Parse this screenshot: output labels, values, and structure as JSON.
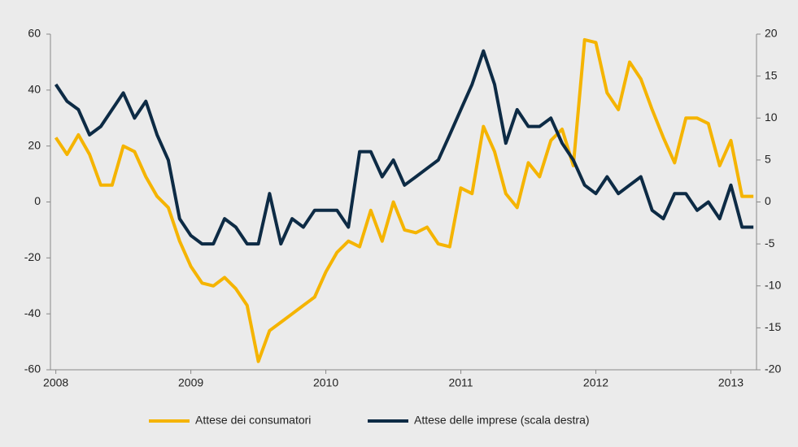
{
  "chart_data": {
    "type": "line",
    "x": [
      2008,
      2008.083,
      2008.167,
      2008.25,
      2008.333,
      2008.417,
      2008.5,
      2008.583,
      2008.667,
      2008.75,
      2008.833,
      2008.917,
      2009,
      2009.083,
      2009.167,
      2009.25,
      2009.333,
      2009.417,
      2009.5,
      2009.583,
      2009.667,
      2009.75,
      2009.833,
      2009.917,
      2010,
      2010.083,
      2010.167,
      2010.25,
      2010.333,
      2010.417,
      2010.5,
      2010.583,
      2010.667,
      2010.75,
      2010.833,
      2010.917,
      2011,
      2011.083,
      2011.167,
      2011.25,
      2011.333,
      2011.417,
      2011.5,
      2011.583,
      2011.667,
      2011.75,
      2011.833,
      2011.917,
      2012,
      2012.083,
      2012.167,
      2012.25,
      2012.333,
      2012.417,
      2012.5,
      2012.583,
      2012.667,
      2012.75,
      2012.833,
      2012.917,
      2013,
      2013.083,
      2013.167
    ],
    "series": [
      {
        "name": "Attese dei consumatori",
        "color": "#f5b400",
        "values": [
          23,
          17,
          24,
          17,
          6,
          6,
          20,
          18,
          9,
          2,
          -2,
          -14,
          -23,
          -29,
          -30,
          -27,
          -31,
          -37,
          -57,
          -46,
          -43,
          -40,
          -37,
          -34,
          -25,
          -18,
          -14,
          -16,
          -3,
          -14,
          0,
          -10,
          -11,
          -9,
          -15,
          -16,
          5,
          3,
          27,
          18,
          3,
          -2,
          14,
          9,
          22,
          26,
          13,
          58,
          57,
          39,
          33,
          50,
          44,
          33,
          23,
          14,
          30,
          30,
          28,
          13,
          22,
          2,
          2
        ]
      },
      {
        "name": "Attese delle imprese (scala destra)",
        "color": "#0d2b45",
        "axis": "y2",
        "values": [
          14,
          12,
          11,
          8,
          9,
          11,
          13,
          10,
          12,
          8,
          5,
          -2,
          -4,
          -5,
          -5,
          -2,
          -3,
          -5,
          -5,
          1,
          -5,
          -2,
          -3,
          -1,
          -1,
          -1,
          -3,
          6,
          6,
          3,
          5,
          2,
          3,
          4,
          5,
          8,
          11,
          14,
          18,
          14,
          7,
          11,
          9,
          9,
          10,
          7,
          5,
          2,
          1,
          3,
          1,
          2,
          3,
          -1,
          -2,
          1,
          1,
          -1,
          0,
          -2,
          2,
          -3,
          -3
        ]
      }
    ],
    "xlim": [
      2007.96,
      2013.19
    ],
    "xticks": [
      2008,
      2009,
      2010,
      2011,
      2012,
      2013
    ],
    "ylim": [
      -60,
      60
    ],
    "yticks": [
      -60,
      -40,
      -20,
      0,
      20,
      40,
      60
    ],
    "y2lim": [
      -20,
      20
    ],
    "y2ticks": [
      -20,
      -15,
      -10,
      -5,
      0,
      5,
      10,
      15,
      20
    ],
    "legend": "bottom"
  }
}
